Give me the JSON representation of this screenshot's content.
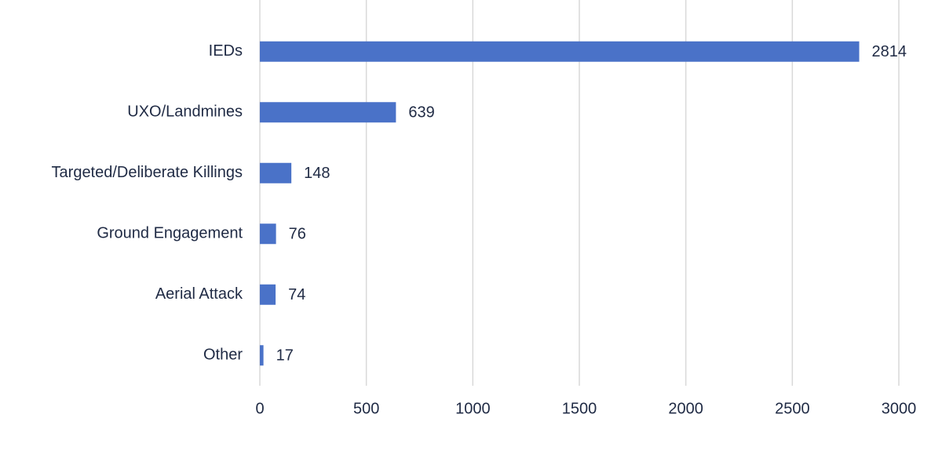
{
  "chart_data": {
    "type": "hbar",
    "categories": [
      "IEDs",
      "UXO/Landmines",
      "Targeted/Deliberate Killings",
      "Ground Engagement",
      "Aerial Attack",
      "Other"
    ],
    "values": [
      2814,
      639,
      148,
      76,
      74,
      17
    ],
    "color": "#4a72c8",
    "xlim": [
      0,
      3000
    ],
    "xticks": [
      0,
      500,
      1000,
      1500,
      2000,
      2500,
      3000
    ],
    "grid": true
  }
}
